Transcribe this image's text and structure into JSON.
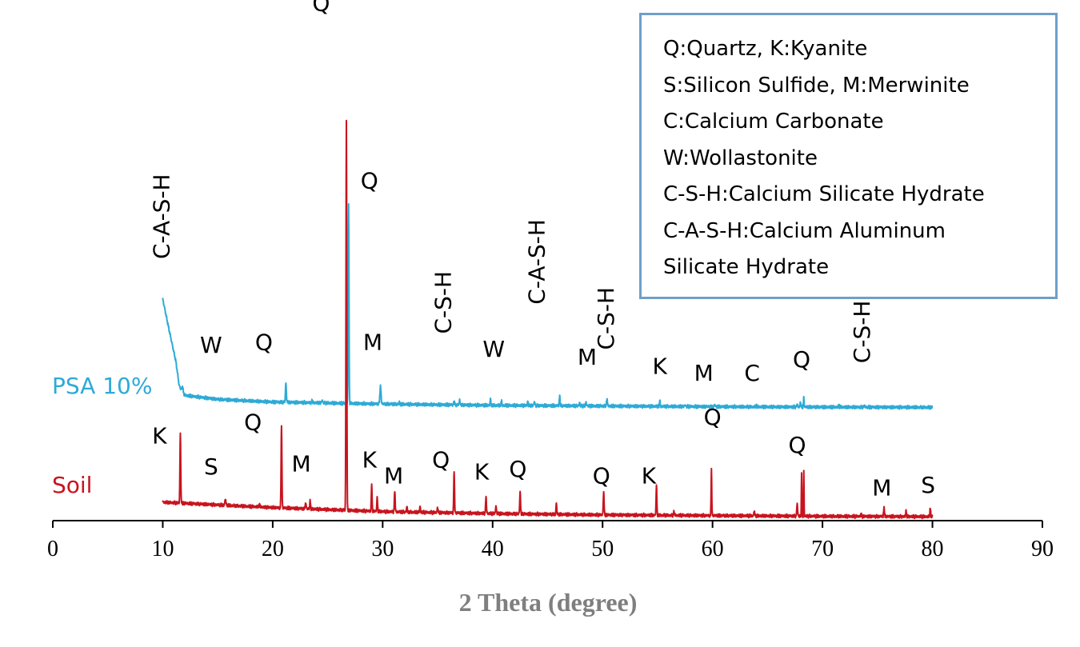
{
  "chart_data": {
    "type": "line",
    "xlabel": "2 Theta (degree)",
    "ylabel": "",
    "xlim": [
      0,
      90
    ],
    "xticks": [
      0,
      10,
      20,
      30,
      40,
      50,
      60,
      70,
      80,
      90
    ],
    "grid": false,
    "legend_position": "top-right",
    "legend_lines": [
      "Q:Quartz, K:Kyanite",
      "S:Silicon Sulfide, M:Merwinite",
      "C:Calcium Carbonate",
      "W:Wollastonite",
      "C-S-H:Calcium Silicate Hydrate",
      "C-A-S-H:Calcium Aluminum",
      "Silicate Hydrate"
    ],
    "series": [
      {
        "name": "PSA 10%",
        "color": "#2eaad6",
        "baseline": [
          [
            10,
            0.82
          ],
          [
            10.5,
            0.62
          ],
          [
            11.2,
            0.35
          ],
          [
            11.5,
            0.17
          ],
          [
            12,
            0.1
          ],
          [
            15,
            0.07
          ],
          [
            20,
            0.05
          ],
          [
            30,
            0.035
          ],
          [
            40,
            0.025
          ],
          [
            50,
            0.02
          ],
          [
            60,
            0.015
          ],
          [
            70,
            0.012
          ],
          [
            80,
            0.01
          ]
        ],
        "peaks": [
          [
            11.8,
            0.04,
            0.12
          ],
          [
            21.2,
            0.14,
            0.12
          ],
          [
            23.6,
            0.02,
            0.1
          ],
          [
            24.5,
            0.025,
            0.1
          ],
          [
            26.9,
            1.5,
            0.1
          ],
          [
            29.8,
            0.13,
            0.15
          ],
          [
            31.5,
            0.015,
            0.1
          ],
          [
            36.5,
            0.03,
            0.1
          ],
          [
            37.0,
            0.045,
            0.08
          ],
          [
            39.8,
            0.045,
            0.1
          ],
          [
            40.8,
            0.035,
            0.1
          ],
          [
            43.2,
            0.03,
            0.1
          ],
          [
            43.8,
            0.035,
            0.1
          ],
          [
            46.1,
            0.07,
            0.1
          ],
          [
            47.9,
            0.025,
            0.1
          ],
          [
            48.5,
            0.03,
            0.1
          ],
          [
            50.4,
            0.06,
            0.1
          ],
          [
            55.2,
            0.04,
            0.1
          ],
          [
            57.5,
            0.015,
            0.1
          ],
          [
            60.2,
            0.02,
            0.1
          ],
          [
            64.0,
            0.01,
            0.1
          ],
          [
            67.7,
            0.025,
            0.1
          ],
          [
            68.0,
            0.045,
            0.08
          ],
          [
            68.3,
            0.07,
            0.08
          ],
          [
            71.5,
            0.015,
            0.1
          ],
          [
            73.8,
            0.015,
            0.1
          ]
        ]
      },
      {
        "name": "Soil",
        "color": "#c8141e",
        "baseline": [
          [
            10,
            0.12
          ],
          [
            15,
            0.1
          ],
          [
            20,
            0.08
          ],
          [
            30,
            0.05
          ],
          [
            40,
            0.035
          ],
          [
            50,
            0.025
          ],
          [
            60,
            0.02
          ],
          [
            70,
            0.015
          ],
          [
            80,
            0.012
          ]
        ],
        "peaks": [
          [
            11.6,
            0.52,
            0.1
          ],
          [
            15.7,
            0.05,
            0.12
          ],
          [
            18.8,
            0.02,
            0.1
          ],
          [
            20.8,
            0.62,
            0.1
          ],
          [
            23.0,
            0.05,
            0.1
          ],
          [
            23.4,
            0.06,
            0.1
          ],
          [
            26.7,
            2.92,
            0.1
          ],
          [
            29.0,
            0.19,
            0.1
          ],
          [
            29.5,
            0.1,
            0.1
          ],
          [
            31.1,
            0.16,
            0.1
          ],
          [
            32.2,
            0.04,
            0.1
          ],
          [
            33.4,
            0.04,
            0.1
          ],
          [
            35.0,
            0.04,
            0.1
          ],
          [
            36.5,
            0.31,
            0.1
          ],
          [
            39.4,
            0.13,
            0.1
          ],
          [
            40.3,
            0.06,
            0.1
          ],
          [
            42.5,
            0.17,
            0.1
          ],
          [
            45.8,
            0.08,
            0.1
          ],
          [
            50.1,
            0.18,
            0.1
          ],
          [
            54.9,
            0.22,
            0.1
          ],
          [
            56.5,
            0.03,
            0.1
          ],
          [
            59.9,
            0.35,
            0.08
          ],
          [
            63.8,
            0.04,
            0.1
          ],
          [
            67.7,
            0.1,
            0.1
          ],
          [
            68.1,
            0.33,
            0.06
          ],
          [
            68.3,
            0.34,
            0.06
          ],
          [
            73.5,
            0.02,
            0.1
          ],
          [
            75.6,
            0.06,
            0.12
          ],
          [
            77.6,
            0.04,
            0.1
          ],
          [
            79.8,
            0.06,
            0.1
          ]
        ]
      }
    ],
    "annotations": [
      {
        "text": "C-A-S-H",
        "x": 10.6,
        "y": 1.12,
        "rotate": true
      },
      {
        "text": "W",
        "x": 14.4,
        "y": 0.42
      },
      {
        "text": "Q",
        "x": 19.2,
        "y": 0.44
      },
      {
        "text": "Q",
        "x": 24.4,
        "y": 2.98
      },
      {
        "text": "Q",
        "x": 28.8,
        "y": 1.65
      },
      {
        "text": "M",
        "x": 29.1,
        "y": 0.44
      },
      {
        "text": "C-S-H",
        "x": 36.2,
        "y": 0.56,
        "rotate": true
      },
      {
        "text": "W",
        "x": 40.1,
        "y": 0.39
      },
      {
        "text": "C-A-S-H",
        "x": 44.7,
        "y": 0.78,
        "rotate": true
      },
      {
        "text": "M",
        "x": 48.6,
        "y": 0.33
      },
      {
        "text": "C-S-H",
        "x": 51.0,
        "y": 0.44,
        "rotate": true
      },
      {
        "text": "K",
        "x": 55.2,
        "y": 0.26
      },
      {
        "text": "M",
        "x": 59.2,
        "y": 0.21
      },
      {
        "text": "C",
        "x": 63.6,
        "y": 0.21
      },
      {
        "text": "Q",
        "x": 68.1,
        "y": 0.31
      },
      {
        "text": "C-S-H",
        "x": 74.3,
        "y": 0.34,
        "rotate": true
      },
      {
        "text": "K",
        "x": 9.7,
        "y": -0.26
      },
      {
        "text": "S",
        "x": 14.4,
        "y": -0.49
      },
      {
        "text": "Q",
        "x": 18.2,
        "y": -0.16
      },
      {
        "text": "M",
        "x": 22.6,
        "y": -0.47
      },
      {
        "text": "K",
        "x": 28.8,
        "y": -0.44
      },
      {
        "text": "M",
        "x": 31.0,
        "y": -0.56
      },
      {
        "text": "Q",
        "x": 35.3,
        "y": -0.44
      },
      {
        "text": "K",
        "x": 39.0,
        "y": -0.53
      },
      {
        "text": "Q",
        "x": 42.3,
        "y": -0.51
      },
      {
        "text": "Q",
        "x": 49.9,
        "y": -0.56
      },
      {
        "text": "K",
        "x": 54.2,
        "y": -0.56
      },
      {
        "text": "Q",
        "x": 60.0,
        "y": -0.12
      },
      {
        "text": "Q",
        "x": 67.7,
        "y": -0.33
      },
      {
        "text": "M",
        "x": 75.4,
        "y": -0.65
      },
      {
        "text": "S",
        "x": 79.6,
        "y": -0.63
      }
    ]
  }
}
